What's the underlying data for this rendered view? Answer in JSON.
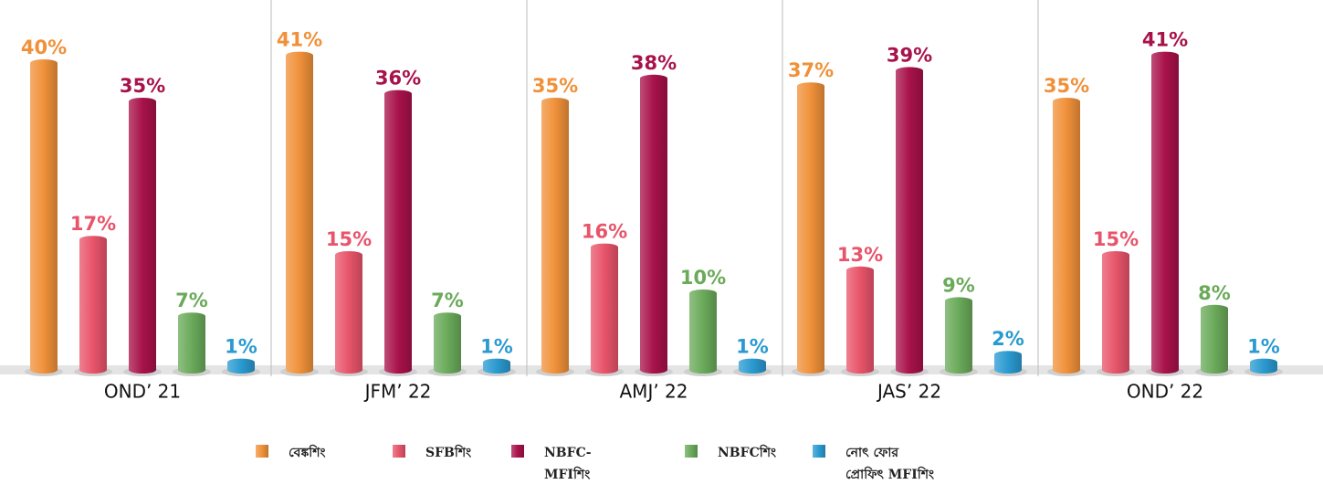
{
  "chart_data": {
    "type": "bar",
    "categories": [
      "OND’ 21",
      "JFM’ 22",
      "AMJ’ 22",
      "JAS’ 22",
      "OND’ 22"
    ],
    "series": [
      {
        "name": "বেঙ্কশিং",
        "color": "#f0913a",
        "values": [
          40,
          41,
          35,
          37,
          35
        ],
        "value_labels": [
          "40%",
          "41%",
          "35%",
          "37%",
          "35%"
        ]
      },
      {
        "name": "SFBশিং",
        "color": "#e8546a",
        "values": [
          17,
          15,
          16,
          13,
          15
        ],
        "value_labels": [
          "17%",
          "15%",
          "16%",
          "13%",
          "15%"
        ]
      },
      {
        "name": "NBFC-MFIশিং",
        "color": "#a8124a",
        "values": [
          35,
          36,
          38,
          39,
          41
        ],
        "value_labels": [
          "35%",
          "36%",
          "38%",
          "39%",
          "41%"
        ]
      },
      {
        "name": "NBFCশিং",
        "color": "#6aaa5a",
        "values": [
          7,
          7,
          10,
          9,
          8
        ],
        "value_labels": [
          "7%",
          "7%",
          "10%",
          "9%",
          "8%"
        ]
      },
      {
        "name": "নোৎ ফোর প্রোফিৎ MFIশিং",
        "color": "#2a9ad0",
        "values": [
          1,
          1,
          1,
          2,
          1
        ],
        "value_labels": [
          "1%",
          "1%",
          "1%",
          "2%",
          "1%"
        ]
      }
    ]
  }
}
